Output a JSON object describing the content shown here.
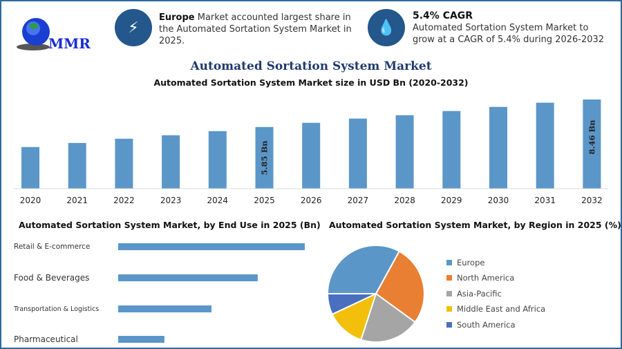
{
  "logo": {
    "text": "MMR"
  },
  "callouts": [
    {
      "icon": "lightning-icon",
      "bold": "Europe",
      "text": " Market accounted largest share in the Automated Sortation System Market in 2025."
    },
    {
      "icon": "drop-icon",
      "bold": "5.4% CAGR",
      "text": "Automated Sortation System Market to grow at a CAGR of 5.4% during 2026-2032"
    }
  ],
  "page_title": "Automated Sortation System Market",
  "chart_data": [
    {
      "type": "bar",
      "title": "Automated Sortation System Market size in USD Bn (2020-2032)",
      "categories": [
        "2020",
        "2021",
        "2022",
        "2023",
        "2024",
        "2025",
        "2026",
        "2027",
        "2028",
        "2029",
        "2030",
        "2031",
        "2032"
      ],
      "values": [
        3.95,
        4.34,
        4.74,
        5.07,
        5.46,
        5.85,
        6.25,
        6.65,
        6.97,
        7.37,
        7.76,
        8.16,
        8.46
      ],
      "data_labels": {
        "2025": "5.85 Bn",
        "2032": "8.46 Bn"
      },
      "color": "#5b96c8",
      "ylim": [
        0,
        8.46
      ]
    },
    {
      "type": "bar",
      "orientation": "horizontal",
      "title": "Automated Sortation System Market, by End Use in 2025 (Bn)",
      "categories": [
        "Retail & E-commerce",
        "Food & Beverages",
        "Transportation & Logistics",
        "Pharmaceutical"
      ],
      "values": [
        2.34,
        1.75,
        1.17,
        0.58
      ],
      "color": "#5b96c8"
    },
    {
      "type": "pie",
      "title": "Automated Sortation System Market, by Region in 2025 (%)",
      "categories": [
        "Europe",
        "North America",
        "Asia-Pacific",
        "Middle East and Africa",
        "South America"
      ],
      "values": [
        33,
        27,
        20,
        13,
        7
      ],
      "colors": [
        "#5b96c8",
        "#e97f33",
        "#a5a5a5",
        "#f2bf0a",
        "#4a6fbf"
      ],
      "legend": "right"
    }
  ]
}
